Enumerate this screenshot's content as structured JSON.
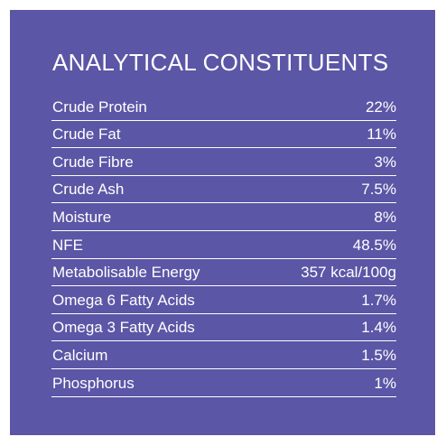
{
  "title": "ANALYTICAL CONSTITUENTS",
  "colors": {
    "panel_background": "#5c56a6",
    "text": "#ffffff",
    "page_background": "#ffffff"
  },
  "rows": [
    {
      "name": "Crude Protein",
      "value": "22%"
    },
    {
      "name": "Crude Fat",
      "value": "11%"
    },
    {
      "name": "Crude Fibre",
      "value": "3%"
    },
    {
      "name": "Crude Ash",
      "value": "7.5%"
    },
    {
      "name": "Moisture",
      "value": "8%"
    },
    {
      "name": "NFE",
      "value": "48.5%"
    },
    {
      "name": "Metabolisable Energy",
      "value": "357 kcal/100g"
    },
    {
      "name": "Omega 6 Fatty Acids",
      "value": "1.7%"
    },
    {
      "name": "Omega 3 Fatty Acids",
      "value": "1.4%"
    },
    {
      "name": "Calcium",
      "value": "1.5%"
    },
    {
      "name": "Phosphorus",
      "value": "1%"
    }
  ]
}
